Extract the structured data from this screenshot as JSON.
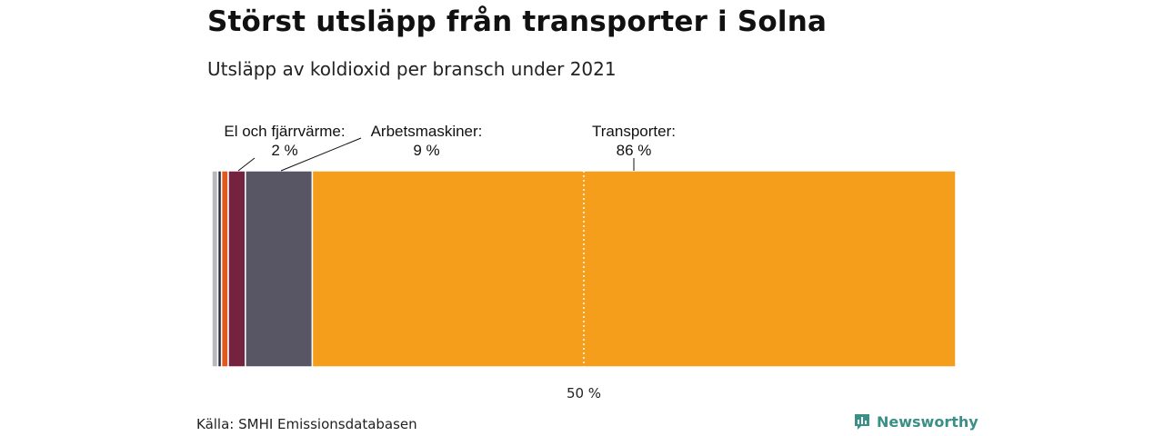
{
  "header": {
    "title": "Störst utsläpp från transporter i Solna",
    "subtitle": "Utsläpp av koldioxid per bransch under 2021"
  },
  "footer": {
    "source": "Källa: SMHI Emissionsdatabasen",
    "brand": "Newsworthy",
    "brand_color": "#3a8f86"
  },
  "chart_data": {
    "type": "bar",
    "orientation": "horizontal-stacked-100",
    "xlim": [
      0,
      100
    ],
    "segments": [
      {
        "name": "",
        "value": 0.8,
        "color": "#b8b8bf"
      },
      {
        "name": "",
        "value": 0.5,
        "color": "#2b2b3a"
      },
      {
        "name": "",
        "value": 0.9,
        "color": "#e05a1e"
      },
      {
        "name": "El och fjärrvärme:",
        "value": 2.3,
        "label": "2 %",
        "color": "#742240"
      },
      {
        "name": "Arbetsmaskiner:",
        "value": 9.0,
        "label": "9 %",
        "color": "#585564"
      },
      {
        "name": "Transporter:",
        "value": 86.5,
        "label": "86 %",
        "color": "#f59e1b"
      }
    ],
    "reference_line": {
      "value": 50,
      "label": "50 %"
    }
  }
}
